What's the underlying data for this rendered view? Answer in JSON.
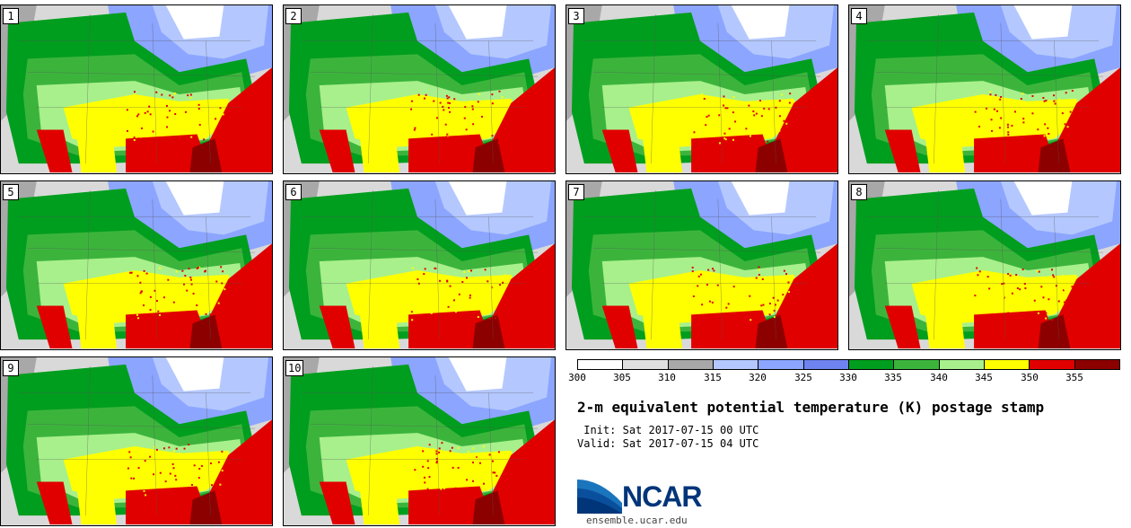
{
  "stamps": [
    {
      "label": "1"
    },
    {
      "label": "2"
    },
    {
      "label": "3"
    },
    {
      "label": "4"
    },
    {
      "label": "5"
    },
    {
      "label": "6"
    },
    {
      "label": "7"
    },
    {
      "label": "8"
    },
    {
      "label": "9"
    },
    {
      "label": "10"
    }
  ],
  "colorbar": {
    "ticks": [
      "300",
      "305",
      "310",
      "315",
      "320",
      "325",
      "330",
      "335",
      "340",
      "345",
      "350",
      "355"
    ],
    "colors": [
      "#ffffff",
      "#e0e0e0",
      "#a8a8a8",
      "#b4c8ff",
      "#8ca5ff",
      "#6e82f0",
      "#009e1e",
      "#3cb43c",
      "#a8f08c",
      "#ffff00",
      "#e10000",
      "#8c0000"
    ]
  },
  "title": "2-m equivalent potential temperature (K) postage stamp",
  "init": {
    "label": " Init:",
    "value": "Sat 2017-07-15 00 UTC"
  },
  "valid": {
    "label": "Valid:",
    "value": "Sat 2017-07-15 04 UTC"
  },
  "logo": {
    "text": "NCAR",
    "url": "ensemble.ucar.edu"
  }
}
